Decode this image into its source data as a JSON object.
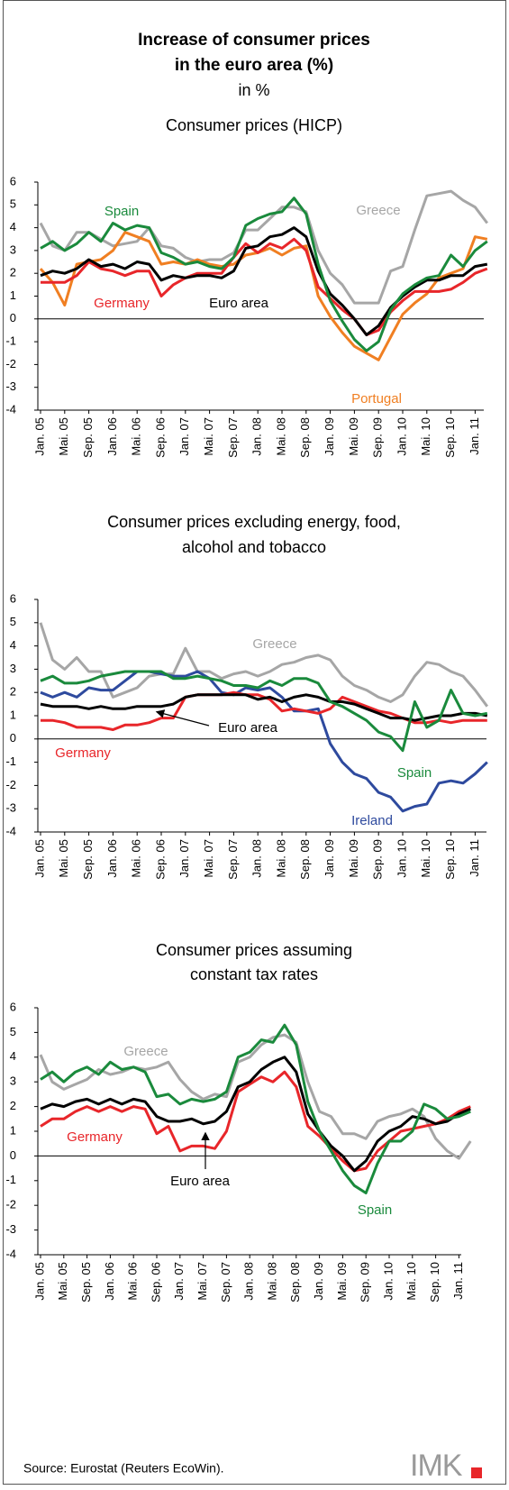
{
  "header": {
    "title_lines": [
      "Increase of consumer prices",
      "in the euro area (%)"
    ],
    "unit": "in %"
  },
  "chart_data": [
    {
      "type": "line",
      "title": [
        "Consumer prices (HICP)"
      ],
      "categories": [
        "Jan. 05",
        null,
        "Mai. 05",
        null,
        "Sep. 05",
        null,
        "Jan. 06",
        null,
        "Mai. 06",
        null,
        "Sep. 06",
        null,
        "Jan. 07",
        null,
        "Mai. 07",
        null,
        "Sep. 07",
        null,
        "Jan. 08",
        null,
        "Mai. 08",
        null,
        "Sep. 08",
        null,
        "Jan. 09",
        null,
        "Mai. 09",
        null,
        "Sep. 09",
        null,
        "Jan. 10",
        null,
        "Mai. 10",
        null,
        "Sep. 10",
        null,
        "Jan. 11",
        null
      ],
      "ylim": [
        -4,
        6
      ],
      "yticks": [
        -4,
        -3,
        -2,
        -1,
        0,
        1,
        2,
        3,
        4,
        5,
        6
      ],
      "series": [
        {
          "name": "Greece",
          "color": "#a6a6a6",
          "values": [
            4.2,
            3.2,
            3.0,
            3.8,
            3.8,
            3.5,
            3.2,
            3.3,
            3.4,
            4.0,
            3.2,
            3.1,
            2.7,
            2.5,
            2.6,
            2.6,
            2.9,
            3.9,
            3.9,
            4.4,
            4.9,
            4.9,
            4.7,
            3.0,
            2.0,
            1.5,
            0.7,
            0.7,
            0.7,
            2.1,
            2.3,
            3.9,
            5.4,
            5.5,
            5.6,
            5.2,
            4.9,
            4.2
          ]
        },
        {
          "name": "Portugal",
          "color": "#f07f22",
          "values": [
            2.2,
            1.6,
            0.6,
            2.4,
            2.5,
            2.6,
            3.0,
            3.8,
            3.6,
            3.4,
            2.4,
            2.5,
            2.4,
            2.6,
            2.4,
            2.3,
            2.4,
            2.8,
            2.9,
            3.1,
            2.8,
            3.1,
            3.2,
            1.0,
            0.1,
            -0.6,
            -1.2,
            -1.5,
            -1.8,
            -0.8,
            0.2,
            0.7,
            1.1,
            1.8,
            2.0,
            2.2,
            3.6,
            3.5
          ]
        },
        {
          "name": "Germany",
          "color": "#e8262a",
          "values": [
            1.6,
            1.6,
            1.6,
            1.9,
            2.5,
            2.2,
            2.1,
            1.9,
            2.1,
            2.1,
            1.0,
            1.5,
            1.8,
            2.0,
            2.0,
            2.0,
            2.7,
            3.3,
            2.9,
            3.3,
            3.1,
            3.5,
            3.0,
            1.4,
            0.9,
            0.4,
            0.0,
            -0.7,
            -0.5,
            0.3,
            0.8,
            1.2,
            1.2,
            1.2,
            1.3,
            1.6,
            2.0,
            2.2
          ]
        },
        {
          "name": "Euro area",
          "color": "#000000",
          "values": [
            1.9,
            2.1,
            2.0,
            2.2,
            2.6,
            2.3,
            2.4,
            2.2,
            2.5,
            2.4,
            1.7,
            1.9,
            1.8,
            1.9,
            1.9,
            1.8,
            2.1,
            3.1,
            3.2,
            3.6,
            3.7,
            4.0,
            3.6,
            2.1,
            1.1,
            0.6,
            0.0,
            -0.7,
            -0.3,
            0.5,
            1.0,
            1.4,
            1.7,
            1.7,
            1.9,
            1.9,
            2.3,
            2.4
          ]
        },
        {
          "name": "Spain",
          "color": "#1a8a3c",
          "values": [
            3.1,
            3.4,
            3.0,
            3.3,
            3.8,
            3.4,
            4.2,
            3.9,
            4.1,
            4.0,
            2.9,
            2.7,
            2.4,
            2.5,
            2.3,
            2.2,
            2.7,
            4.1,
            4.4,
            4.6,
            4.7,
            5.3,
            4.6,
            2.4,
            0.8,
            -0.1,
            -0.9,
            -1.4,
            -1.0,
            0.4,
            1.1,
            1.5,
            1.8,
            1.9,
            2.8,
            2.3,
            3.0,
            3.4
          ]
        }
      ]
    },
    {
      "type": "line",
      "title": [
        "Consumer prices excluding energy, food,",
        "alcohol and tobacco"
      ],
      "categories": [
        "Jan. 05",
        null,
        "Mai. 05",
        null,
        "Sep. 05",
        null,
        "Jan. 06",
        null,
        "Mai. 06",
        null,
        "Sep. 06",
        null,
        "Jan. 07",
        null,
        "Mai. 07",
        null,
        "Sep. 07",
        null,
        "Jan. 08",
        null,
        "Mai. 08",
        null,
        "Sep. 08",
        null,
        "Jan. 09",
        null,
        "Mai. 09",
        null,
        "Sep. 09",
        null,
        "Jan. 10",
        null,
        "Mai. 10",
        null,
        "Sep. 10",
        null,
        "Jan. 11",
        null
      ],
      "ylim": [
        -4,
        6
      ],
      "yticks": [
        -4,
        -3,
        -2,
        -1,
        0,
        1,
        2,
        3,
        4,
        5,
        6
      ],
      "series": [
        {
          "name": "Greece",
          "color": "#a6a6a6",
          "values": [
            5.0,
            3.4,
            3.0,
            3.5,
            2.9,
            2.9,
            1.8,
            2.0,
            2.2,
            2.7,
            2.8,
            2.8,
            3.9,
            2.9,
            2.9,
            2.6,
            2.8,
            2.9,
            2.7,
            2.9,
            3.2,
            3.3,
            3.5,
            3.6,
            3.4,
            2.7,
            2.3,
            2.1,
            1.8,
            1.6,
            1.9,
            2.7,
            3.3,
            3.2,
            2.9,
            2.7,
            2.1,
            1.4
          ]
        },
        {
          "name": "Ireland",
          "color": "#2e4a9e",
          "values": [
            2.0,
            1.8,
            2.0,
            1.8,
            2.2,
            2.1,
            2.1,
            2.5,
            2.9,
            2.9,
            2.8,
            2.7,
            2.7,
            2.9,
            2.6,
            2.0,
            1.9,
            2.2,
            2.1,
            2.2,
            1.8,
            1.2,
            1.2,
            1.3,
            -0.2,
            -1.0,
            -1.5,
            -1.7,
            -2.3,
            -2.5,
            -3.1,
            -2.9,
            -2.8,
            -1.9,
            -1.8,
            -1.9,
            -1.5,
            -1.0
          ]
        },
        {
          "name": "Germany",
          "color": "#e8262a",
          "values": [
            0.8,
            0.8,
            0.7,
            0.5,
            0.5,
            0.5,
            0.4,
            0.6,
            0.6,
            0.7,
            0.9,
            0.9,
            1.8,
            1.9,
            1.9,
            1.9,
            2.0,
            1.9,
            1.9,
            1.7,
            1.2,
            1.3,
            1.2,
            1.1,
            1.3,
            1.8,
            1.6,
            1.4,
            1.2,
            1.1,
            0.9,
            0.7,
            0.7,
            0.8,
            0.7,
            0.8,
            0.8,
            0.8
          ]
        },
        {
          "name": "Euro area",
          "color": "#000000",
          "values": [
            1.5,
            1.4,
            1.4,
            1.4,
            1.3,
            1.4,
            1.3,
            1.3,
            1.4,
            1.4,
            1.4,
            1.5,
            1.8,
            1.9,
            1.9,
            1.9,
            1.9,
            1.9,
            1.7,
            1.8,
            1.6,
            1.8,
            1.9,
            1.8,
            1.6,
            1.6,
            1.5,
            1.3,
            1.1,
            0.9,
            0.9,
            0.8,
            0.9,
            1.0,
            1.0,
            1.1,
            1.1,
            1.0
          ]
        },
        {
          "name": "Spain",
          "color": "#1a8a3c",
          "values": [
            2.5,
            2.7,
            2.4,
            2.4,
            2.5,
            2.7,
            2.8,
            2.9,
            2.9,
            2.9,
            2.9,
            2.6,
            2.6,
            2.7,
            2.6,
            2.5,
            2.3,
            2.3,
            2.2,
            2.5,
            2.3,
            2.6,
            2.6,
            2.4,
            1.6,
            1.4,
            1.1,
            0.8,
            0.3,
            0.1,
            -0.5,
            1.6,
            0.5,
            0.8,
            2.1,
            1.1,
            1.0,
            1.1
          ]
        }
      ]
    },
    {
      "type": "line",
      "title": [
        "Consumer prices assuming",
        "constant tax rates"
      ],
      "categories": [
        "Jan. 05",
        null,
        "Mai. 05",
        null,
        "Sep. 05",
        null,
        "Jan. 06",
        null,
        "Mai. 06",
        null,
        "Sep. 06",
        null,
        "Jan. 07",
        null,
        "Mai. 07",
        null,
        "Sep. 07",
        null,
        "Jan. 08",
        null,
        "Mai. 08",
        null,
        "Sep. 08",
        null,
        "Jan. 09",
        null,
        "Mai. 09",
        null,
        "Sep. 09",
        null,
        "Jan. 10",
        null,
        "Mai. 10",
        null,
        "Sep. 10",
        null,
        "Jan. 11",
        null
      ],
      "ylim": [
        -4,
        6
      ],
      "yticks": [
        -4,
        -3,
        -2,
        -1,
        0,
        1,
        2,
        3,
        4,
        5,
        6
      ],
      "series": [
        {
          "name": "Greece",
          "color": "#a6a6a6",
          "values": [
            4.1,
            3.0,
            2.7,
            2.9,
            3.1,
            3.5,
            3.3,
            3.4,
            3.6,
            3.5,
            3.6,
            3.8,
            3.1,
            2.6,
            2.3,
            2.5,
            2.4,
            3.8,
            4.0,
            4.5,
            4.8,
            4.9,
            4.6,
            3.0,
            1.8,
            1.6,
            0.9,
            0.9,
            0.7,
            1.4,
            1.6,
            1.7,
            1.9,
            1.6,
            0.7,
            0.2,
            -0.1,
            0.6
          ]
        },
        {
          "name": "Germany",
          "color": "#e8262a",
          "values": [
            1.2,
            1.5,
            1.5,
            1.8,
            2.0,
            1.8,
            2.0,
            1.8,
            2.0,
            1.9,
            0.9,
            1.2,
            0.2,
            0.4,
            0.4,
            0.3,
            1.0,
            2.6,
            2.9,
            3.2,
            3.0,
            3.4,
            2.8,
            1.2,
            0.8,
            0.3,
            -0.2,
            -0.6,
            -0.5,
            0.2,
            0.6,
            1.0,
            1.1,
            1.2,
            1.3,
            1.5,
            1.8,
            2.0
          ]
        },
        {
          "name": "Euro area",
          "color": "#000000",
          "values": [
            1.9,
            2.1,
            2.0,
            2.2,
            2.3,
            2.1,
            2.3,
            2.1,
            2.3,
            2.2,
            1.6,
            1.4,
            1.4,
            1.5,
            1.3,
            1.4,
            1.8,
            2.8,
            3.0,
            3.5,
            3.8,
            4.0,
            3.4,
            1.7,
            1.0,
            0.4,
            0.0,
            -0.6,
            -0.2,
            0.6,
            1.0,
            1.2,
            1.6,
            1.5,
            1.3,
            1.4,
            1.7,
            1.9
          ]
        },
        {
          "name": "Spain",
          "color": "#1a8a3c",
          "values": [
            3.1,
            3.4,
            3.0,
            3.4,
            3.6,
            3.3,
            3.8,
            3.5,
            3.6,
            3.4,
            2.4,
            2.5,
            2.1,
            2.3,
            2.2,
            2.3,
            2.6,
            4.0,
            4.2,
            4.7,
            4.6,
            5.3,
            4.5,
            2.2,
            1.0,
            0.2,
            -0.6,
            -1.2,
            -1.5,
            -0.3,
            0.6,
            0.6,
            1.0,
            2.1,
            1.9,
            1.5,
            1.6,
            1.8
          ]
        }
      ]
    }
  ],
  "source": "Source: Eurostat (Reuters EcoWin).",
  "logo": "IMK"
}
